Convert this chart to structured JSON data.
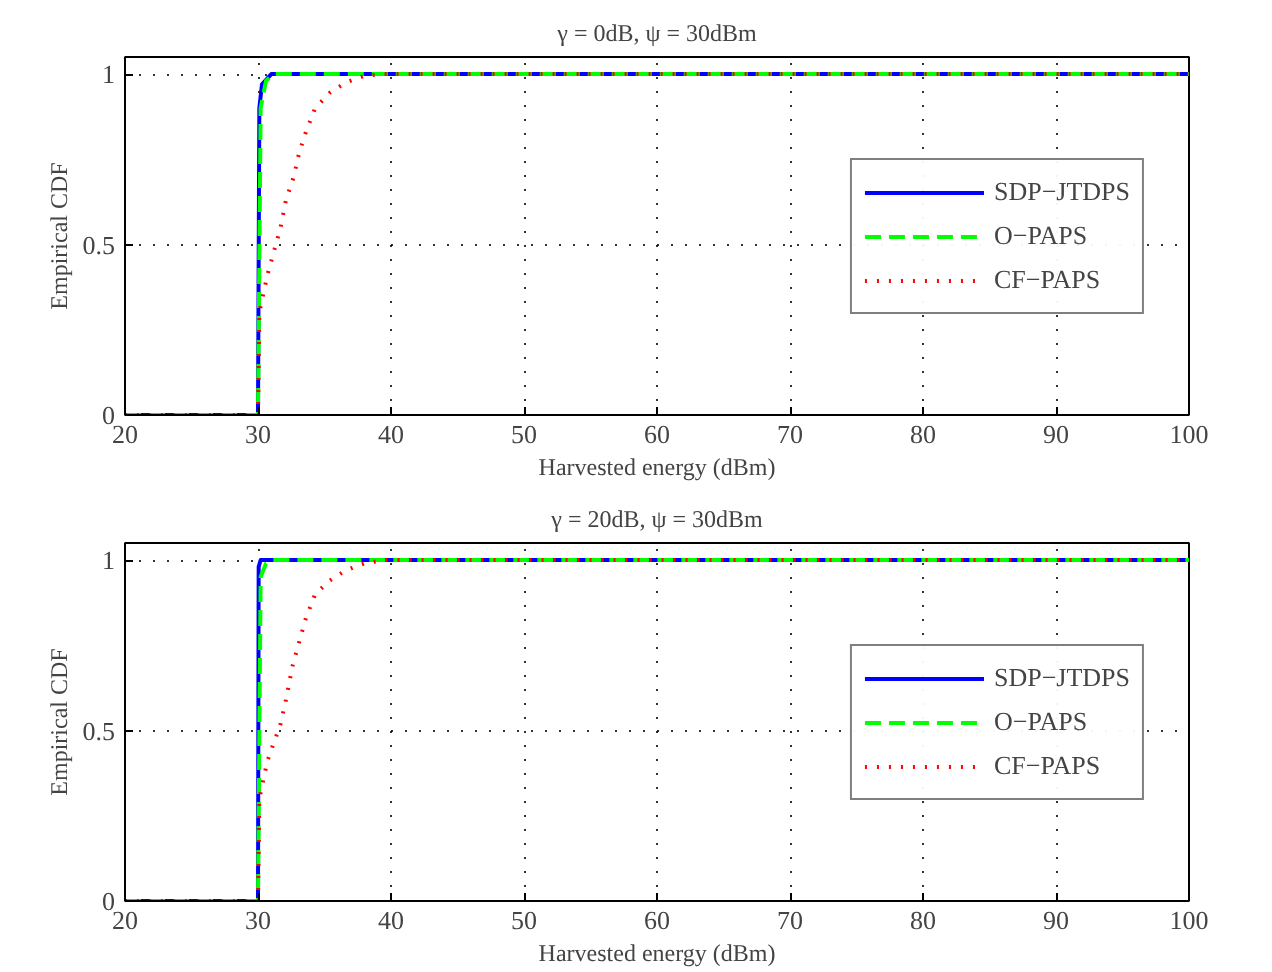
{
  "chart_data": [
    {
      "type": "line",
      "title": "γ = 0dB, ψ = 30dBm",
      "xlabel": "Harvested energy (dBm)",
      "ylabel": "Empirical CDF",
      "xlim": [
        20,
        100
      ],
      "ylim": [
        0,
        1.05
      ],
      "xticks": [
        20,
        30,
        40,
        50,
        60,
        70,
        80,
        90,
        100
      ],
      "yticks": [
        0,
        0.5,
        1
      ],
      "grid": true,
      "legend": "right",
      "series": [
        {
          "name": "SDP−JTDPS",
          "color": "#0000ff",
          "line_style": "solid",
          "x": [
            20,
            30,
            30.1,
            30.3,
            31,
            100
          ],
          "values": [
            0,
            0,
            0.9,
            0.97,
            1,
            1
          ]
        },
        {
          "name": "O−PAPS",
          "color": "#00ff00",
          "line_style": "dashed",
          "x": [
            20,
            30,
            30.2,
            30.6,
            31.2,
            100
          ],
          "values": [
            0,
            0,
            0.9,
            0.98,
            1,
            1
          ]
        },
        {
          "name": "CF−PAPS",
          "color": "#ff0000",
          "line_style": "dotted",
          "x": [
            20,
            30,
            30.1,
            30.7,
            31.2,
            31.7,
            32.1,
            32.7,
            33.1,
            33.6,
            34.3,
            35.4,
            36.6,
            38,
            39.5,
            100
          ],
          "values": [
            0,
            0,
            0.3,
            0.41,
            0.48,
            0.55,
            0.63,
            0.7,
            0.77,
            0.83,
            0.9,
            0.945,
            0.975,
            0.995,
            1,
            1
          ]
        }
      ]
    },
    {
      "type": "line",
      "title": "γ = 20dB, ψ = 30dBm",
      "xlabel": "Harvested energy (dBm)",
      "ylabel": "Empirical CDF",
      "xlim": [
        20,
        100
      ],
      "ylim": [
        0,
        1.05
      ],
      "xticks": [
        20,
        30,
        40,
        50,
        60,
        70,
        80,
        90,
        100
      ],
      "yticks": [
        0,
        0.5,
        1
      ],
      "grid": true,
      "legend": "right",
      "series": [
        {
          "name": "SDP−JTDPS",
          "color": "#0000ff",
          "line_style": "solid",
          "x": [
            20,
            30,
            30.05,
            30.2,
            100
          ],
          "values": [
            0,
            0,
            0.98,
            1,
            1
          ]
        },
        {
          "name": "O−PAPS",
          "color": "#00ff00",
          "line_style": "dashed",
          "x": [
            20,
            30,
            30.2,
            30.6,
            31,
            100
          ],
          "values": [
            0,
            0,
            0.95,
            0.99,
            1,
            1
          ]
        },
        {
          "name": "CF−PAPS",
          "color": "#ff0000",
          "line_style": "dotted",
          "x": [
            20,
            30,
            30.1,
            30.7,
            31.7,
            32.1,
            32.6,
            33.1,
            33.6,
            34.3,
            35.4,
            36.6,
            38,
            39.5,
            100
          ],
          "values": [
            0,
            0,
            0.3,
            0.41,
            0.52,
            0.59,
            0.69,
            0.76,
            0.83,
            0.9,
            0.94,
            0.97,
            0.99,
            1,
            1
          ]
        }
      ]
    }
  ]
}
